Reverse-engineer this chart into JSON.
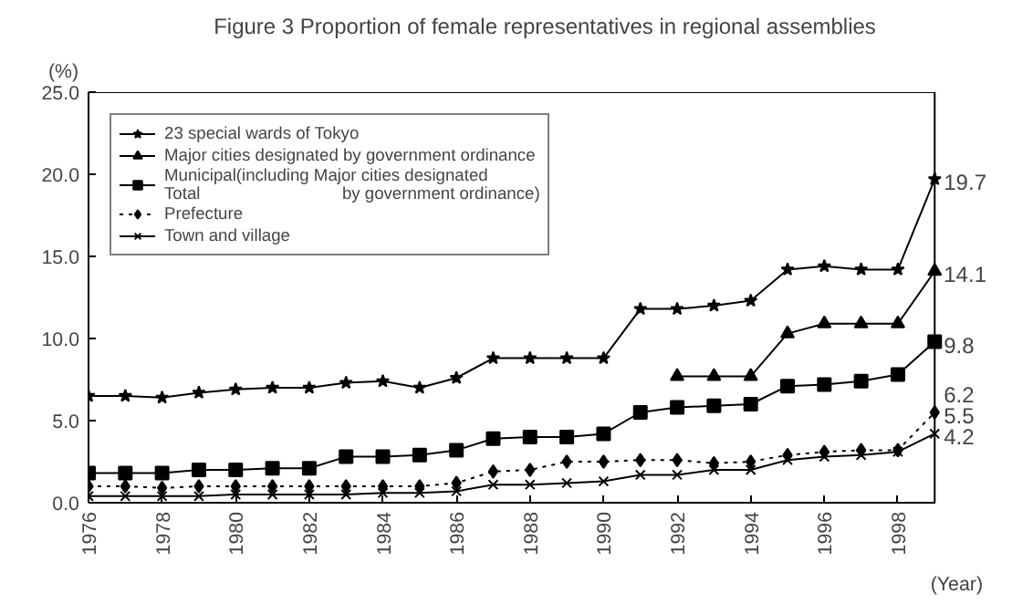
{
  "chart_data": {
    "type": "line",
    "title": "Figure 3    Proportion of female representatives in regional assemblies",
    "xlabel": "(Year)",
    "ylabel": "(%)",
    "x": [
      1976,
      1977,
      1978,
      1979,
      1980,
      1981,
      1982,
      1983,
      1984,
      1985,
      1986,
      1987,
      1988,
      1989,
      1990,
      1991,
      1992,
      1993,
      1994,
      1995,
      1996,
      1997,
      1998,
      1999
    ],
    "series": [
      {
        "name": "23 special wards of Tokyo",
        "color": "#000000",
        "marker": "star",
        "line_style": "solid",
        "values": [
          6.5,
          6.5,
          6.4,
          6.7,
          6.9,
          7.0,
          7.0,
          7.3,
          7.4,
          7.0,
          7.6,
          8.8,
          8.8,
          8.8,
          8.8,
          11.8,
          11.8,
          12.0,
          12.3,
          14.2,
          14.4,
          14.2,
          14.2,
          19.7
        ],
        "value_labels": [
          null,
          null,
          null,
          null,
          null,
          null,
          null,
          null,
          null,
          null,
          null,
          null,
          null,
          null,
          null,
          null,
          null,
          null,
          null,
          null,
          null,
          null,
          null,
          "19.7"
        ]
      },
      {
        "name": "Major cities designated by government ordinance",
        "color": "#000000",
        "marker": "triangle",
        "line_style": "solid",
        "values": [
          null,
          null,
          null,
          null,
          null,
          null,
          null,
          null,
          null,
          null,
          null,
          null,
          null,
          null,
          null,
          null,
          7.7,
          7.7,
          7.7,
          10.3,
          10.9,
          10.9,
          10.9,
          14.1
        ],
        "value_labels": [
          null,
          null,
          null,
          null,
          null,
          null,
          null,
          null,
          null,
          null,
          null,
          null,
          null,
          null,
          null,
          null,
          null,
          null,
          null,
          null,
          null,
          null,
          null,
          "14.1"
        ]
      },
      {
        "name": "Municipal(including Major cities designated\nTotal                              by government ordinance)",
        "color": "#000000",
        "marker": "square",
        "line_style": "solid",
        "values": [
          1.8,
          1.8,
          1.8,
          2.0,
          2.0,
          2.1,
          2.1,
          2.8,
          2.8,
          2.9,
          3.2,
          3.9,
          4.0,
          4.0,
          4.2,
          5.5,
          5.8,
          5.9,
          6.0,
          7.1,
          7.2,
          7.4,
          7.8,
          9.8
        ],
        "value_labels": [
          null,
          null,
          null,
          null,
          null,
          null,
          null,
          null,
          null,
          null,
          null,
          null,
          null,
          null,
          null,
          null,
          null,
          null,
          null,
          null,
          null,
          null,
          null,
          "9.8"
        ]
      },
      {
        "name": "Prefecture",
        "color": "#000000",
        "marker": "diamond",
        "line_style": "dotted",
        "values": [
          1.0,
          1.0,
          0.9,
          1.0,
          1.0,
          1.0,
          1.0,
          1.0,
          1.0,
          1.0,
          1.2,
          1.9,
          2.0,
          2.5,
          2.5,
          2.6,
          2.6,
          2.4,
          2.5,
          2.9,
          3.1,
          3.2,
          3.2,
          5.5
        ],
        "value_labels": [
          null,
          null,
          null,
          null,
          null,
          null,
          null,
          null,
          null,
          null,
          null,
          null,
          null,
          null,
          null,
          null,
          null,
          null,
          null,
          null,
          null,
          null,
          null,
          "5.5"
        ]
      },
      {
        "name": "Town and village",
        "color": "#000000",
        "marker": "cross",
        "line_style": "solid",
        "values": [
          0.4,
          0.4,
          0.4,
          0.4,
          0.5,
          0.5,
          0.5,
          0.5,
          0.6,
          0.6,
          0.7,
          1.1,
          1.1,
          1.2,
          1.3,
          1.7,
          1.7,
          2.0,
          2.0,
          2.6,
          2.8,
          2.9,
          3.1,
          4.2
        ],
        "value_labels": [
          null,
          null,
          null,
          null,
          null,
          null,
          null,
          null,
          null,
          null,
          null,
          null,
          null,
          null,
          null,
          null,
          null,
          null,
          null,
          null,
          null,
          null,
          null,
          "4.2"
        ]
      }
    ],
    "annotations": [
      {
        "text": "6.2",
        "x": 1999,
        "y": 6.2
      }
    ],
    "xlim": [
      1976,
      1999
    ],
    "xticks": [
      1976,
      1978,
      1980,
      1982,
      1984,
      1986,
      1988,
      1990,
      1992,
      1994,
      1996,
      1998
    ],
    "ylim": [
      0,
      25
    ],
    "yticks": [
      {
        "value": 0,
        "label": "0.0"
      },
      {
        "value": 5,
        "label": "5.0"
      },
      {
        "value": 10,
        "label": "10.0"
      },
      {
        "value": 15,
        "label": "15.0"
      },
      {
        "value": 20,
        "label": "20.0"
      },
      {
        "value": 25,
        "label": "25.0"
      }
    ],
    "grid": false,
    "legend": "top left"
  }
}
